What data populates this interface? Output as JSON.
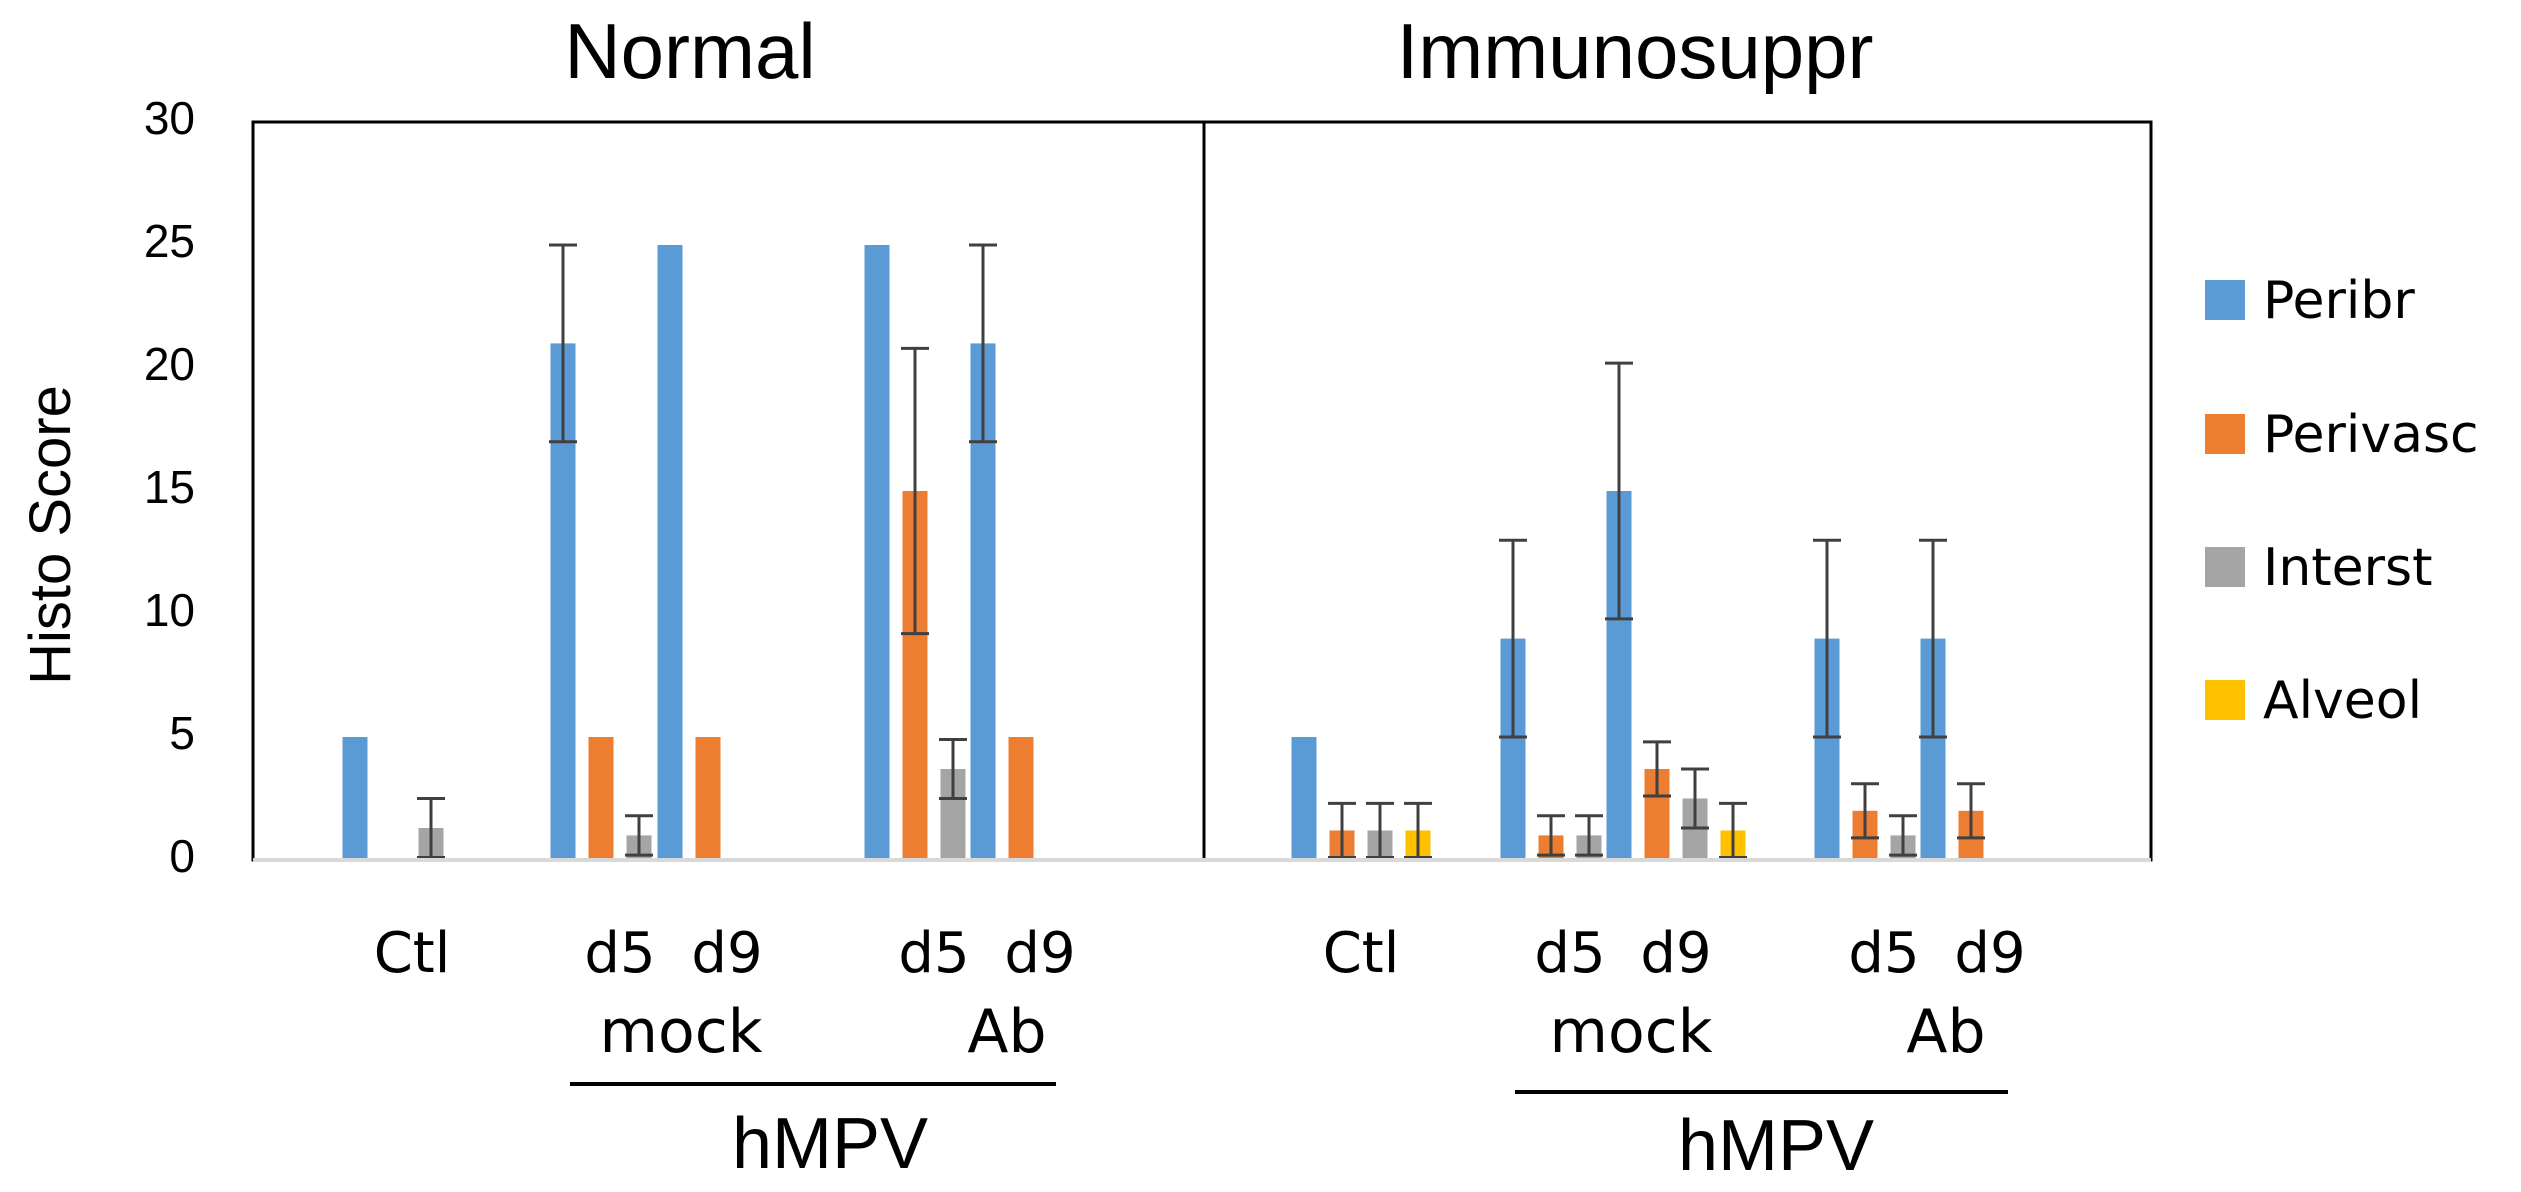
{
  "chart_data": {
    "type": "bar",
    "ylabel": "Histo Score",
    "ylim": [
      0,
      30
    ],
    "yticks": [
      "0",
      "5",
      "10",
      "15",
      "20",
      "25",
      "30"
    ],
    "series_names": [
      "Peribr",
      "Perivasc",
      "Interst",
      "Alveol"
    ],
    "colors": {
      "Peribr": "#5b9bd5",
      "Perivasc": "#ed7d31",
      "Interst": "#a5a5a5",
      "Alveol": "#ffc000"
    },
    "panels": [
      {
        "title": "Normal",
        "categories": [
          "Ctl",
          "d5",
          "d9",
          "d5",
          "d9"
        ],
        "group_labels": [
          "mock",
          "Ab"
        ],
        "underline_label": "hMPV",
        "series": [
          {
            "name": "Peribr",
            "values": [
              5,
              21,
              25,
              25,
              21
            ],
            "errors": [
              0,
              4,
              0,
              0,
              4
            ]
          },
          {
            "name": "Perivasc",
            "values": [
              0,
              5,
              5,
              15,
              5
            ],
            "errors": [
              0,
              0,
              0,
              5.8,
              0
            ]
          },
          {
            "name": "Interst",
            "values": [
              1.3,
              1,
              0,
              3.7,
              0
            ],
            "errors": [
              1.2,
              0.8,
              0,
              1.2,
              0
            ]
          },
          {
            "name": "Alveol",
            "values": [
              0,
              0,
              0,
              0,
              0
            ],
            "errors": [
              0,
              0,
              0,
              0,
              0
            ]
          }
        ]
      },
      {
        "title": "Immunosuppr",
        "categories": [
          "Ctl",
          "d5",
          "d9",
          "d5",
          "d9"
        ],
        "group_labels": [
          "mock",
          "Ab"
        ],
        "underline_label": "hMPV",
        "series": [
          {
            "name": "Peribr",
            "values": [
              5,
              9,
              15,
              9,
              9
            ],
            "errors": [
              0,
              4,
              5.2,
              4,
              4
            ]
          },
          {
            "name": "Perivasc",
            "values": [
              1.2,
              1,
              3.7,
              2,
              2
            ],
            "errors": [
              1.1,
              0.8,
              1.1,
              1.1,
              1.1
            ]
          },
          {
            "name": "Interst",
            "values": [
              1.2,
              1,
              2.5,
              1,
              0
            ],
            "errors": [
              1.1,
              0.8,
              1.2,
              0.8,
              0
            ]
          },
          {
            "name": "Alveol",
            "values": [
              1.2,
              0,
              1.2,
              0,
              0
            ],
            "errors": [
              1.1,
              0,
              1.1,
              0,
              0
            ]
          }
        ]
      }
    ]
  }
}
